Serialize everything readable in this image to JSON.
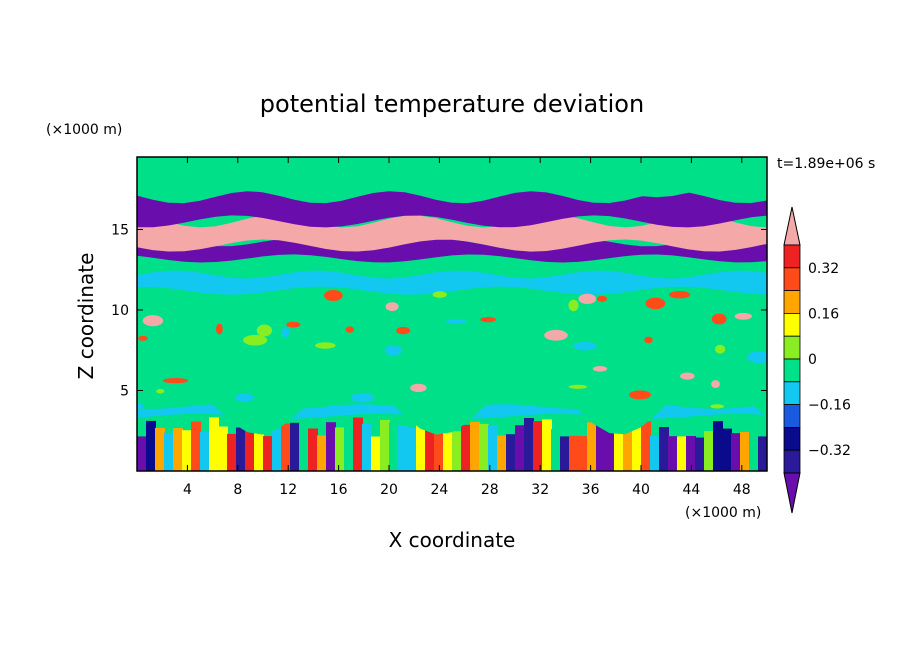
{
  "chart_data": {
    "type": "heatmap",
    "title": "potential temperature deviation",
    "xlabel": "X coordinate",
    "ylabel": "Z coordinate",
    "x_unit": "(×1000 m)",
    "y_unit": "(×1000 m)",
    "time_label": "t=1.89e+06 s",
    "xlim": [
      0,
      50
    ],
    "ylim": [
      0,
      19.5
    ],
    "x_ticks": [
      4,
      8,
      12,
      16,
      20,
      24,
      28,
      32,
      36,
      40,
      44,
      48
    ],
    "y_ticks": [
      5,
      10,
      15
    ],
    "colorbar": {
      "levels": [
        -0.4,
        -0.32,
        -0.24,
        -0.16,
        -0.08,
        0,
        0.08,
        0.16,
        0.24,
        0.32,
        0.4
      ],
      "tick_labels": [
        "0.32",
        "0.16",
        "0",
        "-0.16",
        "-0.32"
      ],
      "colors": [
        "#6a0dad",
        "#2a1a9a",
        "#0a0a8c",
        "#1a5ae0",
        "#12c8f0",
        "#00e088",
        "#88ee22",
        "#ffff00",
        "#ffa500",
        "#ff4a1a",
        "#ee2222",
        "#f4a8a8"
      ]
    },
    "fields": [
      {
        "z_range": [
          0,
          3.4
        ],
        "pattern": "mixed",
        "level_indices": [
          0,
          1,
          2,
          4,
          5,
          6,
          7,
          8,
          9,
          10
        ]
      },
      {
        "z_range": [
          3.4,
          4
        ],
        "pattern": "band",
        "level_index": 4
      },
      {
        "z_range": [
          4,
          11
        ],
        "pattern": "band",
        "level_index": 5
      },
      {
        "z_range": [
          11.2,
          12.2
        ],
        "pattern": "band",
        "level_index": 4
      },
      {
        "z_range": [
          13.2,
          14.2
        ],
        "pattern": "band",
        "level_index": 0
      },
      {
        "z_range": [
          14,
          15.5
        ],
        "pattern": "band",
        "level_index": 11
      },
      {
        "z_range": [
          15.5,
          17
        ],
        "pattern": "band",
        "level_index": 0
      },
      {
        "z_range": [
          17.5,
          19.5
        ],
        "pattern": "band",
        "level_index": 5
      }
    ]
  }
}
